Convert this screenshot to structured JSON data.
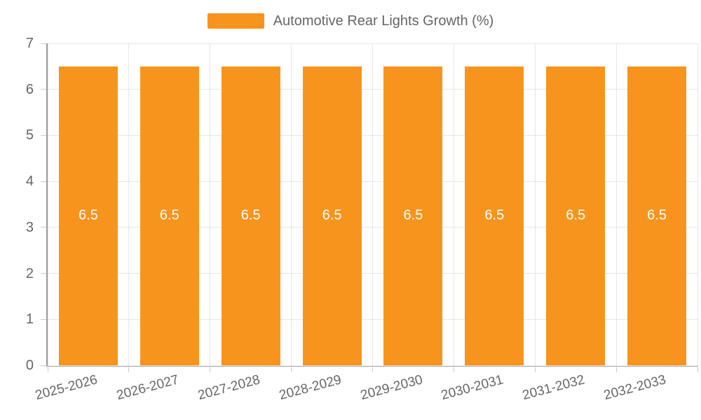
{
  "chart_data": {
    "type": "bar",
    "title": "",
    "xlabel": "",
    "ylabel": "",
    "categories": [
      "2025-2026",
      "2026-2027",
      "2027-2028",
      "2028-2029",
      "2029-2030",
      "2030-2031",
      "2031-2032",
      "2032-2033"
    ],
    "series": [
      {
        "name": "Automotive Rear Lights Growth (%)",
        "color": "#F7941E",
        "values": [
          6.5,
          6.5,
          6.5,
          6.5,
          6.5,
          6.5,
          6.5,
          6.5
        ]
      }
    ],
    "value_labels": [
      "6.5",
      "6.5",
      "6.5",
      "6.5",
      "6.5",
      "6.5",
      "6.5",
      "6.5"
    ],
    "ylim": [
      0,
      7
    ],
    "yticks": [
      0,
      1,
      2,
      3,
      4,
      5,
      6,
      7
    ],
    "grid": true,
    "legend_position": "top-center",
    "colors": {
      "bar": "#F7941E",
      "value_label_text": "#FFFFFF",
      "axis_text": "#666666",
      "gridline": "#E6E6E6",
      "axis_line": "#9C9C9C"
    }
  }
}
